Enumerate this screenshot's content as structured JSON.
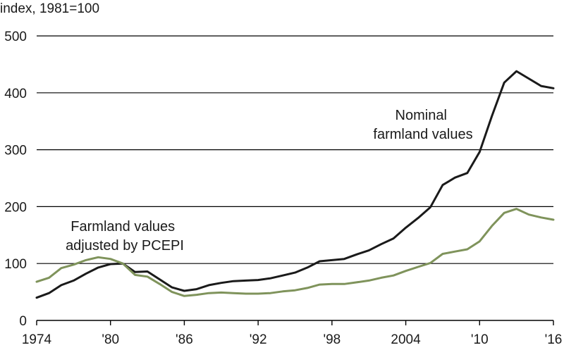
{
  "chart_data": {
    "type": "line",
    "ylabel": "index, 1981=100",
    "ylim": [
      0,
      500
    ],
    "xlim": [
      1974,
      2016
    ],
    "y_ticks": [
      {
        "value": 0,
        "label": "0"
      },
      {
        "value": 100,
        "label": "100"
      },
      {
        "value": 200,
        "label": "200"
      },
      {
        "value": 300,
        "label": "300"
      },
      {
        "value": 400,
        "label": "400"
      },
      {
        "value": 500,
        "label": "500"
      }
    ],
    "x_ticks": [
      {
        "value": 1974,
        "label": "1974"
      },
      {
        "value": 1980,
        "label": "'80"
      },
      {
        "value": 1986,
        "label": "'86"
      },
      {
        "value": 1992,
        "label": "'92"
      },
      {
        "value": 1998,
        "label": "'98"
      },
      {
        "value": 2004,
        "label": "2004"
      },
      {
        "value": 2010,
        "label": "'10"
      },
      {
        "value": 2016,
        "label": "'16"
      }
    ],
    "grid": true,
    "x": [
      1974,
      1975,
      1976,
      1977,
      1978,
      1979,
      1980,
      1981,
      1982,
      1983,
      1984,
      1985,
      1986,
      1987,
      1988,
      1989,
      1990,
      1991,
      1992,
      1993,
      1994,
      1995,
      1996,
      1997,
      1998,
      1999,
      2000,
      2001,
      2002,
      2003,
      2004,
      2005,
      2006,
      2007,
      2008,
      2009,
      2010,
      2011,
      2012,
      2013,
      2014,
      2015,
      2016
    ],
    "series": [
      {
        "name": "Nominal farmland values",
        "label_lines": [
          "Nominal",
          "farmland values"
        ],
        "color": "#1a1a1a",
        "values": [
          40,
          48,
          62,
          70,
          82,
          93,
          99,
          100,
          85,
          86,
          72,
          58,
          52,
          55,
          62,
          66,
          69,
          70,
          71,
          74,
          79,
          84,
          93,
          104,
          106,
          108,
          116,
          123,
          134,
          144,
          163,
          180,
          199,
          238,
          251,
          259,
          296,
          359,
          418,
          438,
          425,
          412,
          408
        ]
      },
      {
        "name": "Farmland values adjusted by PCEPI",
        "label_lines": [
          "Farmland values",
          "adjusted by PCEPI"
        ],
        "color": "#7f935b",
        "values": [
          68,
          75,
          92,
          98,
          106,
          111,
          108,
          100,
          80,
          77,
          64,
          50,
          43,
          45,
          48,
          49,
          48,
          47,
          47,
          48,
          51,
          53,
          57,
          63,
          64,
          64,
          67,
          70,
          75,
          79,
          87,
          94,
          101,
          117,
          121,
          125,
          139,
          166,
          189,
          196,
          186,
          181,
          177
        ]
      }
    ]
  }
}
